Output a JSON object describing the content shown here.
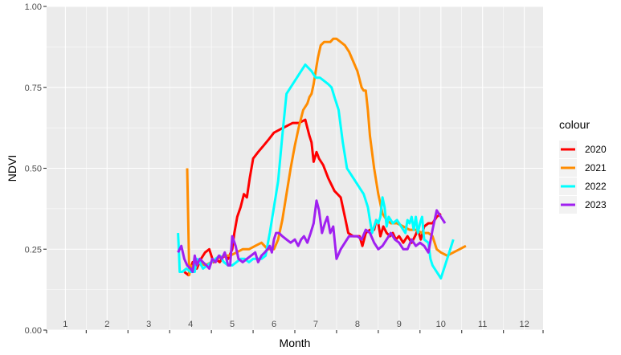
{
  "chart_data": {
    "type": "line",
    "xlabel": "Month",
    "ylabel": "NDVI",
    "xlim": [
      0.55,
      12.45
    ],
    "ylim": [
      0,
      1
    ],
    "x_ticks": [
      1,
      2,
      3,
      4,
      5,
      6,
      7,
      8,
      9,
      10,
      11,
      12
    ],
    "x_tick_labels": [
      "1",
      "2",
      "3",
      "4",
      "5",
      "6",
      "7",
      "8",
      "9",
      "10",
      "11",
      "12"
    ],
    "y_ticks": [
      0,
      0.25,
      0.5,
      0.75,
      1
    ],
    "y_tick_labels": [
      "0.00",
      "0.25",
      "0.50",
      "0.75",
      "1.00"
    ],
    "grid": true,
    "background": "#ebebeb",
    "legend": {
      "title": "colour",
      "position": "right"
    },
    "series": [
      {
        "name": "2020",
        "color": "#ff0000",
        "x": [
          3.85,
          3.95,
          4.05,
          4.15,
          4.25,
          4.35,
          4.45,
          4.55,
          4.6,
          4.7,
          4.8,
          4.9,
          5.0,
          5.05,
          5.12,
          5.2,
          5.28,
          5.35,
          5.42,
          5.5,
          5.62,
          5.75,
          5.88,
          6.0,
          6.15,
          6.3,
          6.45,
          6.6,
          6.75,
          6.85,
          6.9,
          6.95,
          7.02,
          7.08,
          7.18,
          7.3,
          7.45,
          7.6,
          7.7,
          7.78,
          7.9,
          8.05,
          8.12,
          8.2,
          8.3,
          8.4,
          8.45,
          8.5,
          8.55,
          8.62,
          8.7,
          8.78,
          8.85,
          8.92,
          9.0,
          9.1,
          9.2,
          9.3,
          9.38,
          9.45,
          9.52,
          9.6,
          9.7,
          9.8,
          9.9,
          10.0
        ],
        "y": [
          0.18,
          0.17,
          0.21,
          0.19,
          0.22,
          0.24,
          0.25,
          0.21,
          0.22,
          0.21,
          0.23,
          0.22,
          0.25,
          0.3,
          0.35,
          0.38,
          0.42,
          0.41,
          0.47,
          0.53,
          0.55,
          0.57,
          0.59,
          0.61,
          0.62,
          0.63,
          0.64,
          0.64,
          0.65,
          0.6,
          0.58,
          0.52,
          0.55,
          0.53,
          0.51,
          0.47,
          0.43,
          0.41,
          0.35,
          0.3,
          0.29,
          0.29,
          0.26,
          0.3,
          0.31,
          0.31,
          0.34,
          0.33,
          0.29,
          0.32,
          0.3,
          0.29,
          0.3,
          0.28,
          0.29,
          0.27,
          0.29,
          0.27,
          0.29,
          0.31,
          0.28,
          0.32,
          0.33,
          0.33,
          0.35,
          0.36
        ]
      },
      {
        "name": "2021",
        "color": "#ff8c00",
        "x": [
          3.92,
          3.95,
          3.97,
          4.0,
          4.1,
          4.2,
          4.35,
          4.5,
          4.65,
          4.8,
          4.95,
          5.1,
          5.25,
          5.4,
          5.55,
          5.7,
          5.85,
          6.0,
          6.1,
          6.2,
          6.3,
          6.4,
          6.5,
          6.6,
          6.7,
          6.8,
          6.85,
          6.9,
          6.95,
          7.0,
          7.05,
          7.12,
          7.2,
          7.28,
          7.35,
          7.42,
          7.5,
          7.6,
          7.7,
          7.8,
          7.9,
          8.0,
          8.1,
          8.15,
          8.2,
          8.25,
          8.3,
          8.4,
          8.5,
          8.6,
          8.7,
          8.8,
          8.95,
          9.1,
          9.25,
          9.4,
          9.55,
          9.7,
          9.8,
          9.9,
          10.0,
          10.15,
          10.3,
          10.45,
          10.6
        ],
        "y": [
          0.5,
          0.3,
          0.17,
          0.2,
          0.19,
          0.21,
          0.2,
          0.21,
          0.22,
          0.23,
          0.23,
          0.24,
          0.25,
          0.25,
          0.26,
          0.27,
          0.25,
          0.25,
          0.28,
          0.34,
          0.42,
          0.5,
          0.57,
          0.63,
          0.68,
          0.7,
          0.72,
          0.73,
          0.76,
          0.8,
          0.84,
          0.88,
          0.89,
          0.89,
          0.89,
          0.9,
          0.9,
          0.89,
          0.88,
          0.86,
          0.83,
          0.8,
          0.75,
          0.74,
          0.74,
          0.68,
          0.6,
          0.5,
          0.42,
          0.36,
          0.34,
          0.33,
          0.33,
          0.32,
          0.31,
          0.31,
          0.3,
          0.3,
          0.29,
          0.25,
          0.24,
          0.23,
          0.24,
          0.25,
          0.26
        ]
      },
      {
        "name": "2022",
        "color": "#00ffff",
        "x": [
          3.7,
          3.72,
          3.74,
          3.8,
          3.9,
          4.0,
          4.1,
          4.15,
          4.22,
          4.3,
          4.4,
          4.5,
          4.6,
          4.7,
          4.8,
          4.9,
          5.0,
          5.1,
          5.2,
          5.3,
          5.4,
          5.5,
          5.6,
          5.7,
          5.8,
          5.9,
          6.0,
          6.1,
          6.2,
          6.3,
          6.45,
          6.6,
          6.75,
          6.9,
          7.0,
          7.1,
          7.2,
          7.3,
          7.38,
          7.45,
          7.55,
          7.65,
          7.75,
          7.85,
          7.95,
          8.05,
          8.15,
          8.25,
          8.35,
          8.45,
          8.5,
          8.55,
          8.6,
          8.65,
          8.7,
          8.75,
          8.85,
          8.95,
          9.05,
          9.15,
          9.2,
          9.25,
          9.3,
          9.35,
          9.4,
          9.45,
          9.5,
          9.55,
          9.6,
          9.7,
          9.75,
          9.8,
          9.9,
          10.0,
          10.1,
          10.2,
          10.3
        ],
        "y": [
          0.3,
          0.25,
          0.18,
          0.18,
          0.19,
          0.18,
          0.18,
          0.22,
          0.21,
          0.19,
          0.2,
          0.21,
          0.22,
          0.23,
          0.21,
          0.2,
          0.2,
          0.21,
          0.22,
          0.22,
          0.21,
          0.22,
          0.22,
          0.22,
          0.23,
          0.3,
          0.38,
          0.46,
          0.6,
          0.73,
          0.76,
          0.79,
          0.82,
          0.8,
          0.78,
          0.78,
          0.77,
          0.76,
          0.75,
          0.72,
          0.68,
          0.58,
          0.5,
          0.48,
          0.46,
          0.44,
          0.42,
          0.38,
          0.3,
          0.34,
          0.33,
          0.35,
          0.41,
          0.38,
          0.32,
          0.35,
          0.33,
          0.34,
          0.32,
          0.3,
          0.34,
          0.33,
          0.35,
          0.31,
          0.35,
          0.3,
          0.33,
          0.35,
          0.28,
          0.27,
          0.22,
          0.2,
          0.18,
          0.16,
          0.2,
          0.24,
          0.28
        ]
      },
      {
        "name": "2023",
        "color": "#a020f0",
        "x": [
          3.7,
          3.78,
          3.85,
          3.92,
          4.0,
          4.05,
          4.1,
          4.15,
          4.22,
          4.3,
          4.38,
          4.45,
          4.52,
          4.6,
          4.68,
          4.75,
          4.82,
          4.9,
          4.95,
          5.0,
          5.08,
          5.15,
          5.25,
          5.35,
          5.45,
          5.55,
          5.62,
          5.7,
          5.78,
          5.85,
          5.9,
          5.95,
          6.0,
          6.05,
          6.12,
          6.2,
          6.3,
          6.4,
          6.5,
          6.58,
          6.65,
          6.72,
          6.8,
          6.88,
          6.95,
          7.02,
          7.08,
          7.15,
          7.22,
          7.28,
          7.35,
          7.42,
          7.5,
          7.6,
          7.7,
          7.8,
          7.9,
          8.0,
          8.1,
          8.2,
          8.3,
          8.4,
          8.5,
          8.6,
          8.7,
          8.8,
          8.9,
          9.0,
          9.1,
          9.2,
          9.3,
          9.4,
          9.5,
          9.6,
          9.7,
          9.8,
          9.9,
          10.0,
          10.1
        ],
        "y": [
          0.24,
          0.26,
          0.22,
          0.2,
          0.19,
          0.18,
          0.23,
          0.2,
          0.22,
          0.21,
          0.2,
          0.19,
          0.22,
          0.21,
          0.23,
          0.22,
          0.24,
          0.2,
          0.2,
          0.29,
          0.26,
          0.22,
          0.21,
          0.22,
          0.23,
          0.24,
          0.21,
          0.23,
          0.24,
          0.25,
          0.26,
          0.24,
          0.28,
          0.3,
          0.3,
          0.29,
          0.28,
          0.27,
          0.28,
          0.26,
          0.28,
          0.29,
          0.27,
          0.3,
          0.33,
          0.4,
          0.37,
          0.3,
          0.33,
          0.35,
          0.3,
          0.32,
          0.22,
          0.25,
          0.27,
          0.29,
          0.29,
          0.29,
          0.28,
          0.31,
          0.3,
          0.27,
          0.25,
          0.26,
          0.28,
          0.3,
          0.28,
          0.27,
          0.25,
          0.25,
          0.28,
          0.26,
          0.27,
          0.26,
          0.24,
          0.31,
          0.37,
          0.35,
          0.33
        ]
      }
    ]
  }
}
